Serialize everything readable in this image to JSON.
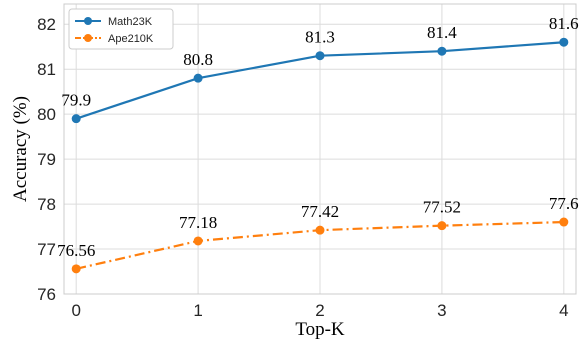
{
  "chart_data": {
    "type": "line",
    "x": [
      0,
      1,
      2,
      3,
      4
    ],
    "xticks": [
      "0",
      "1",
      "2",
      "3",
      "4"
    ],
    "yticks": [
      "76",
      "77",
      "78",
      "79",
      "80",
      "81",
      "82"
    ],
    "xlabel": "Top-K",
    "ylabel": "Accuracy (%)",
    "xlim": [
      -0.1,
      4.1
    ],
    "ylim": [
      76.0,
      82.45
    ],
    "grid": true,
    "legend_position": "top-left",
    "series": [
      {
        "name": "Math23K",
        "values": [
          79.9,
          80.8,
          81.3,
          81.4,
          81.6
        ],
        "labels": [
          "79.9",
          "80.8",
          "81.3",
          "81.4",
          "81.6"
        ],
        "color": "#1f77b4",
        "line_style": "solid",
        "marker": "circle"
      },
      {
        "name": "Ape210K",
        "values": [
          76.56,
          77.18,
          77.42,
          77.52,
          77.6
        ],
        "labels": [
          "76.56",
          "77.18",
          "77.42",
          "77.52",
          "77.6"
        ],
        "color": "#ff7f0e",
        "line_style": "dash-dot",
        "marker": "circle"
      }
    ]
  }
}
